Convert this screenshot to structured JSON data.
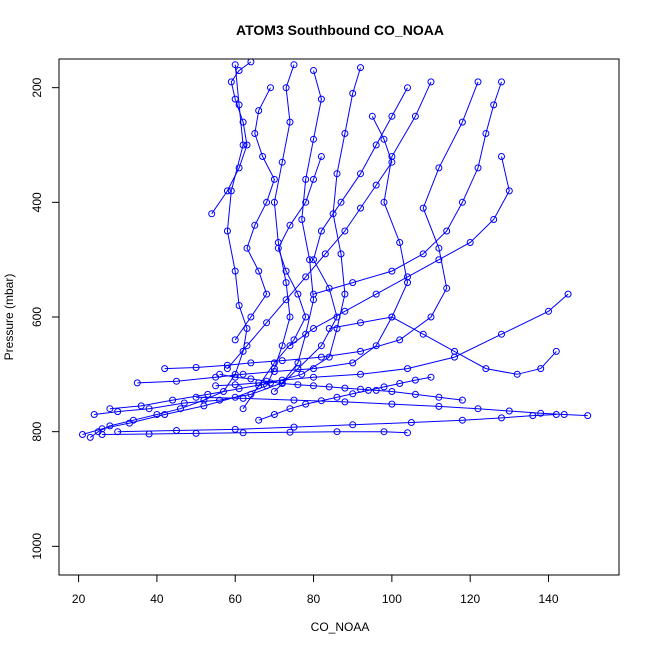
{
  "chart_data": {
    "type": "line",
    "title": "ATOM3 Southbound CO_NOAA",
    "xlabel": "CO_NOAA",
    "ylabel": "Pressure (mbar)",
    "xlim": [
      15,
      158
    ],
    "ylim": [
      1050,
      150
    ],
    "y_reversed": true,
    "grid": false,
    "legend": "none",
    "x_ticks": [
      20,
      40,
      60,
      80,
      100,
      120,
      140
    ],
    "y_ticks": [
      200,
      400,
      600,
      800,
      1000
    ],
    "series_color": "#0000ff",
    "marker": "open-circle",
    "series": [
      {
        "x": [
          23,
          25,
          28,
          34,
          40,
          46,
          52,
          57,
          60,
          62,
          63,
          61,
          60,
          58,
          59,
          62,
          61,
          60
        ],
        "y": [
          810,
          800,
          790,
          780,
          770,
          760,
          745,
          730,
          700,
          660,
          620,
          580,
          520,
          450,
          380,
          300,
          230,
          160
        ]
      },
      {
        "x": [
          21,
          26,
          33,
          42,
          52,
          60,
          68,
          70,
          72,
          74,
          73,
          71,
          70,
          72,
          74,
          73,
          75
        ],
        "y": [
          805,
          795,
          785,
          770,
          755,
          740,
          720,
          690,
          650,
          600,
          540,
          470,
          400,
          330,
          260,
          200,
          160
        ]
      },
      {
        "x": [
          24,
          30,
          38,
          47,
          56,
          64,
          72,
          76,
          78,
          80,
          79,
          77,
          78,
          80,
          82,
          80
        ],
        "y": [
          770,
          765,
          760,
          750,
          745,
          735,
          715,
          680,
          630,
          570,
          500,
          430,
          360,
          290,
          220,
          170
        ]
      },
      {
        "x": [
          28,
          36,
          44,
          53,
          61,
          69,
          77,
          84,
          86,
          88,
          87,
          85,
          86,
          88,
          90,
          92
        ],
        "y": [
          760,
          755,
          745,
          735,
          725,
          715,
          700,
          670,
          620,
          560,
          490,
          420,
          350,
          280,
          210,
          165
        ]
      },
      {
        "x": [
          35,
          45,
          55,
          62,
          70,
          80,
          90,
          96,
          100,
          104,
          102,
          98,
          100,
          106,
          110
        ],
        "y": [
          715,
          712,
          705,
          700,
          695,
          690,
          680,
          650,
          600,
          540,
          470,
          400,
          320,
          250,
          190
        ]
      },
      {
        "x": [
          42,
          50,
          58,
          64,
          72,
          82,
          92,
          102,
          110,
          114,
          112,
          108,
          112,
          118,
          122
        ],
        "y": [
          690,
          688,
          684,
          680,
          676,
          670,
          660,
          640,
          600,
          550,
          480,
          410,
          340,
          260,
          190
        ]
      },
      {
        "x": [
          50,
          62,
          75,
          88,
          100,
          112,
          122,
          130,
          138,
          144,
          150
        ],
        "y": [
          740,
          742,
          745,
          748,
          752,
          756,
          760,
          764,
          768,
          770,
          772
        ]
      },
      {
        "x": [
          30,
          45,
          60,
          75,
          90,
          105,
          118,
          128,
          136,
          142
        ],
        "y": [
          800,
          798,
          796,
          792,
          788,
          784,
          780,
          776,
          772,
          770
        ]
      },
      {
        "x": [
          26,
          38,
          50,
          62,
          74,
          86,
          98,
          104
        ],
        "y": [
          805,
          804,
          803,
          802,
          801,
          800,
          800,
          802
        ]
      },
      {
        "x": [
          55,
          60,
          66,
          72,
          80,
          92,
          104,
          116,
          128,
          140,
          145
        ],
        "y": [
          720,
          718,
          715,
          710,
          705,
          700,
          690,
          670,
          630,
          590,
          560
        ]
      },
      {
        "x": [
          60,
          64,
          68,
          66,
          63,
          65,
          68,
          70,
          67,
          65,
          66,
          69
        ],
        "y": [
          640,
          600,
          560,
          520,
          480,
          440,
          400,
          360,
          320,
          280,
          240,
          200
        ]
      },
      {
        "x": [
          70,
          76,
          82,
          86,
          84,
          80,
          82,
          87,
          92,
          96,
          100,
          104
        ],
        "y": [
          730,
          690,
          650,
          600,
          550,
          500,
          450,
          400,
          350,
          300,
          250,
          200
        ]
      },
      {
        "x": [
          74,
          80,
          88,
          96,
          104,
          112,
          120,
          126,
          130,
          128
        ],
        "y": [
          650,
          620,
          590,
          560,
          530,
          500,
          470,
          430,
          380,
          320
        ]
      },
      {
        "x": [
          80,
          90,
          100,
          108,
          114,
          118,
          122,
          124,
          126,
          128
        ],
        "y": [
          560,
          540,
          520,
          490,
          450,
          400,
          340,
          280,
          230,
          190
        ]
      },
      {
        "x": [
          62,
          66,
          70,
          75,
          78,
          76,
          73,
          71,
          74,
          78,
          80,
          82
        ],
        "y": [
          760,
          720,
          680,
          640,
          600,
          560,
          520,
          480,
          440,
          400,
          360,
          320
        ]
      },
      {
        "x": [
          58,
          63,
          68,
          73,
          78,
          83,
          88,
          92,
          96,
          100,
          98,
          95
        ],
        "y": [
          690,
          650,
          610,
          570,
          530,
          490,
          450,
          410,
          370,
          330,
          290,
          250
        ]
      },
      {
        "x": [
          54,
          58,
          61,
          63,
          62,
          60,
          59,
          61,
          64
        ],
        "y": [
          420,
          380,
          340,
          300,
          260,
          220,
          190,
          170,
          155
        ]
      },
      {
        "x": [
          56,
          60,
          64,
          68,
          72,
          76,
          80,
          84,
          88,
          92,
          96,
          100,
          106,
          112,
          118
        ],
        "y": [
          700,
          705,
          708,
          712,
          716,
          718,
          720,
          722,
          724,
          726,
          728,
          730,
          735,
          740,
          745
        ]
      },
      {
        "x": [
          84,
          92,
          100,
          108,
          116,
          124,
          132,
          138,
          142
        ],
        "y": [
          620,
          610,
          600,
          630,
          660,
          690,
          700,
          690,
          660
        ]
      },
      {
        "x": [
          66,
          70,
          74,
          78,
          82,
          86,
          90,
          94,
          98,
          102,
          106,
          110
        ],
        "y": [
          780,
          770,
          760,
          752,
          746,
          740,
          734,
          728,
          722,
          716,
          710,
          705
        ]
      }
    ]
  }
}
